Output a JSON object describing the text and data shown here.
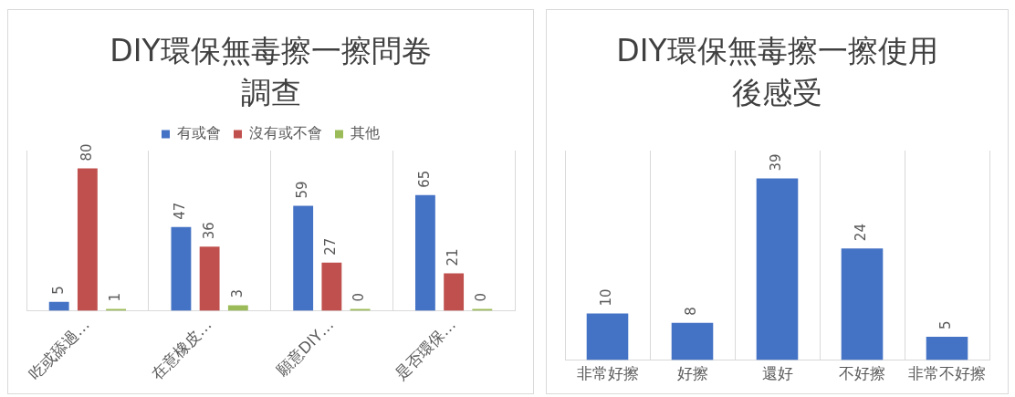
{
  "chart_data": [
    {
      "type": "bar",
      "title": "DIY環保無毒擦一擦問卷調查",
      "categories": [
        "吃或舔過…",
        "在意橡皮…",
        "願意DIY…",
        "是否環保…"
      ],
      "series": [
        {
          "name": "有或會",
          "color": "#4472c4",
          "values": [
            5,
            47,
            59,
            65
          ]
        },
        {
          "name": "沒有或不會",
          "color": "#c0504d",
          "values": [
            80,
            36,
            27,
            21
          ]
        },
        {
          "name": "其他",
          "color": "#9bbb59",
          "values": [
            1,
            3,
            0,
            0
          ]
        }
      ],
      "data_labels": true,
      "legend": "top",
      "grid": "x"
    },
    {
      "type": "bar",
      "title": "DIY環保無毒擦一擦使用後感受",
      "categories": [
        "非常好擦",
        "好擦",
        "還好",
        "不好擦",
        "非常不好擦"
      ],
      "series": [
        {
          "color": "#4472c4",
          "values": [
            10,
            8,
            39,
            24,
            5
          ]
        }
      ],
      "data_labels": true,
      "grid": "x"
    }
  ]
}
